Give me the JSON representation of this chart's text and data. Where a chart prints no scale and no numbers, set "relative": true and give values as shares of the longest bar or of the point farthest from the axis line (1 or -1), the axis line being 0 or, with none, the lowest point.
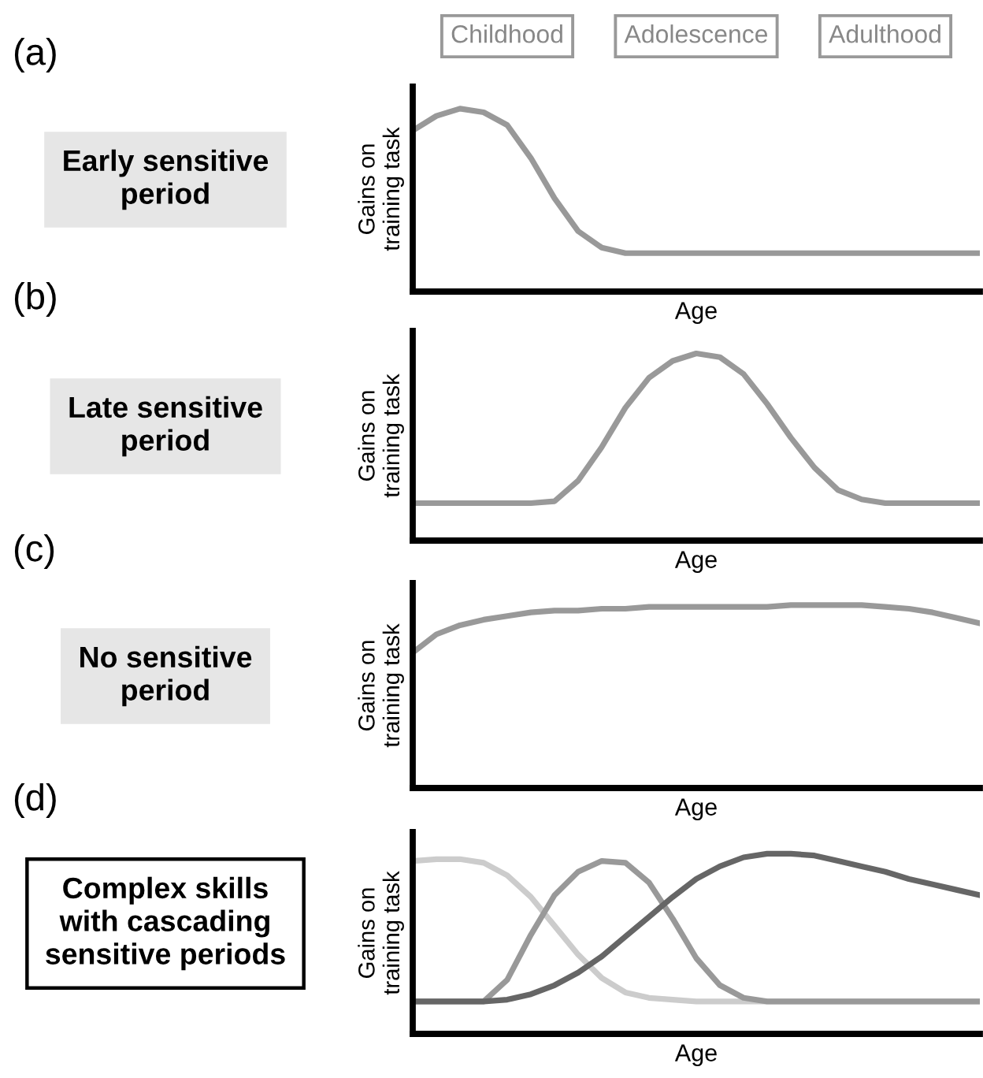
{
  "chart_data": [
    {
      "type": "line",
      "subtitle": "Early sensitive\nperiod",
      "xlabel": "Age",
      "ylabel": "Gains on\ntraining task",
      "relative": true,
      "legend": false,
      "grid": false,
      "annotations": [
        "(a)",
        "Childhood",
        "Adolescence",
        "Adulthood"
      ],
      "categories": [
        null,
        null,
        null,
        null,
        null,
        null,
        null,
        null,
        null,
        null,
        null,
        null,
        null,
        null,
        null,
        null,
        null,
        null,
        null,
        null,
        null,
        null,
        null,
        null,
        null
      ],
      "series": [
        {
          "color": "#999999",
          "values": [
            0.88,
            0.96,
            1,
            0.98,
            0.91,
            0.73,
            0.51,
            0.33,
            0.24,
            0.21,
            0.21,
            0.21,
            0.21,
            0.21,
            0.21,
            0.21,
            0.21,
            0.21,
            0.21,
            0.21,
            0.21,
            0.21,
            0.21,
            0.21,
            0.21
          ]
        }
      ]
    },
    {
      "type": "line",
      "subtitle": "Late sensitive\nperiod",
      "xlabel": "Age",
      "ylabel": "Gains on\ntraining task",
      "relative": true,
      "legend": false,
      "grid": false,
      "annotations": [
        "(b)"
      ],
      "categories": [
        null,
        null,
        null,
        null,
        null,
        null,
        null,
        null,
        null,
        null,
        null,
        null,
        null,
        null,
        null,
        null,
        null,
        null,
        null,
        null,
        null,
        null,
        null,
        null,
        null
      ],
      "series": [
        {
          "color": "#999999",
          "values": [
            0.2,
            0.2,
            0.2,
            0.2,
            0.2,
            0.2,
            0.21,
            0.32,
            0.5,
            0.71,
            0.87,
            0.96,
            1,
            0.98,
            0.89,
            0.73,
            0.55,
            0.39,
            0.27,
            0.22,
            0.2,
            0.2,
            0.2,
            0.2,
            0.2
          ]
        }
      ]
    },
    {
      "type": "line",
      "subtitle": "No sensitive\nperiod",
      "xlabel": "Age",
      "ylabel": "Gains on\ntraining task",
      "relative": true,
      "legend": false,
      "grid": false,
      "annotations": [
        "(c)"
      ],
      "categories": [
        null,
        null,
        null,
        null,
        null,
        null,
        null,
        null,
        null,
        null,
        null,
        null,
        null,
        null,
        null,
        null,
        null,
        null,
        null,
        null,
        null,
        null,
        null,
        null,
        null
      ],
      "series": [
        {
          "color": "#999999",
          "values": [
            0.74,
            0.84,
            0.89,
            0.92,
            0.94,
            0.96,
            0.97,
            0.97,
            0.98,
            0.98,
            0.99,
            0.99,
            0.99,
            0.99,
            0.99,
            0.99,
            1,
            1,
            1,
            1,
            0.99,
            0.98,
            0.96,
            0.93,
            0.9
          ]
        }
      ]
    },
    {
      "type": "line",
      "subtitle": "Complex skills\nwith cascading\nsensitive periods",
      "xlabel": "Age",
      "ylabel": "Gains on\ntraining task",
      "relative": true,
      "legend": false,
      "grid": false,
      "annotations": [
        "(d)"
      ],
      "categories": [
        null,
        null,
        null,
        null,
        null,
        null,
        null,
        null,
        null,
        null,
        null,
        null,
        null,
        null,
        null,
        null,
        null,
        null,
        null,
        null,
        null,
        null,
        null,
        null,
        null
      ],
      "series": [
        {
          "color": "#cccccc",
          "values": [
            0.96,
            0.97,
            0.97,
            0.95,
            0.88,
            0.76,
            0.6,
            0.44,
            0.31,
            0.23,
            0.2,
            0.19,
            0.18,
            0.18,
            0.18,
            0.18,
            0.18,
            0.18,
            0.18,
            0.18,
            0.18,
            0.18,
            0.18,
            0.18,
            0.18
          ]
        },
        {
          "color": "#999999",
          "values": [
            0.18,
            0.18,
            0.18,
            0.18,
            0.3,
            0.55,
            0.77,
            0.9,
            0.96,
            0.95,
            0.84,
            0.64,
            0.42,
            0.27,
            0.2,
            0.18,
            0.18,
            0.18,
            0.18,
            0.18,
            0.18,
            0.18,
            0.18,
            0.18,
            0.18
          ]
        },
        {
          "color": "#666666",
          "values": [
            0.18,
            0.18,
            0.18,
            0.18,
            0.19,
            0.22,
            0.27,
            0.34,
            0.43,
            0.54,
            0.65,
            0.76,
            0.86,
            0.93,
            0.98,
            1,
            1,
            0.99,
            0.96,
            0.93,
            0.9,
            0.86,
            0.83,
            0.8,
            0.77
          ]
        }
      ]
    }
  ]
}
